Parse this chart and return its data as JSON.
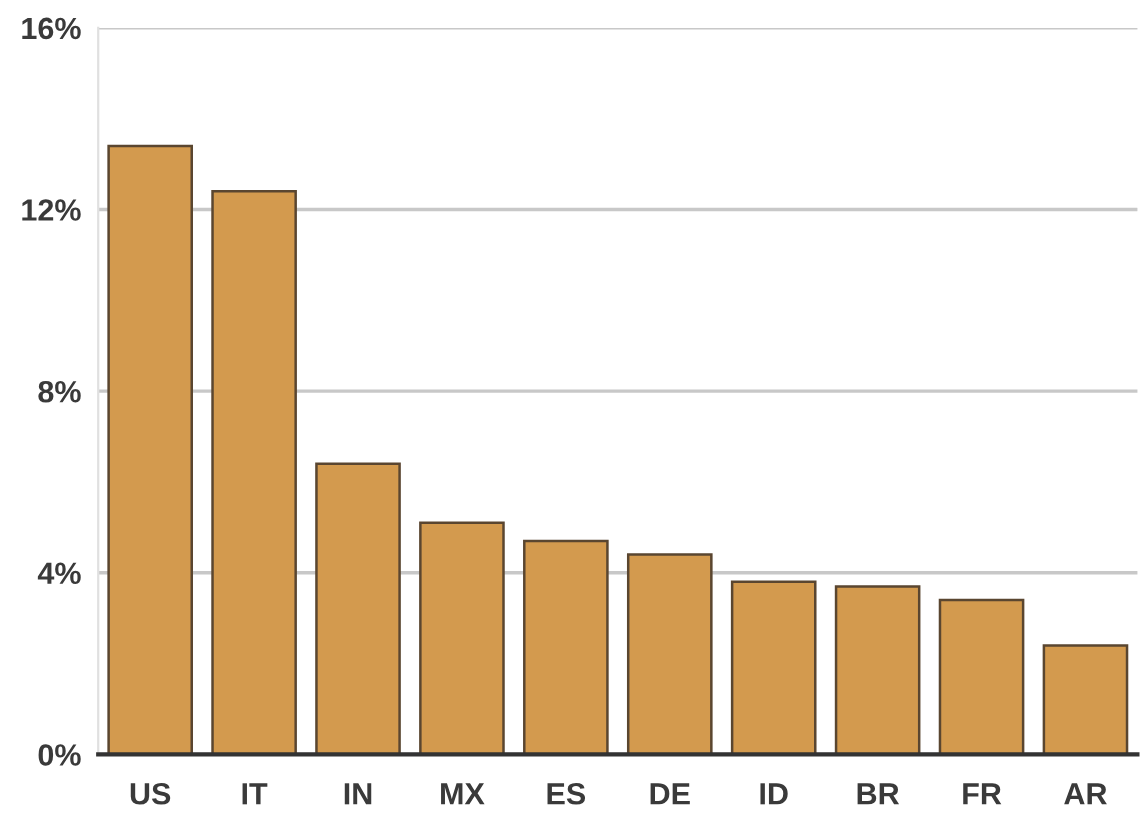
{
  "chart_data": {
    "type": "bar",
    "categories": [
      "US",
      "IT",
      "IN",
      "MX",
      "ES",
      "DE",
      "ID",
      "BR",
      "FR",
      "AR"
    ],
    "values": [
      13.4,
      12.4,
      6.4,
      5.1,
      4.7,
      4.4,
      3.8,
      3.7,
      3.4,
      2.4
    ],
    "color": "#d39a4e",
    "ylim": [
      0,
      16
    ],
    "yticks": [
      {
        "value": 0,
        "label": "0%"
      },
      {
        "value": 4,
        "label": "4%"
      },
      {
        "value": 8,
        "label": "8%"
      },
      {
        "value": 12,
        "label": "12%"
      },
      {
        "value": 16,
        "label": "16%"
      }
    ],
    "grid": "y"
  }
}
